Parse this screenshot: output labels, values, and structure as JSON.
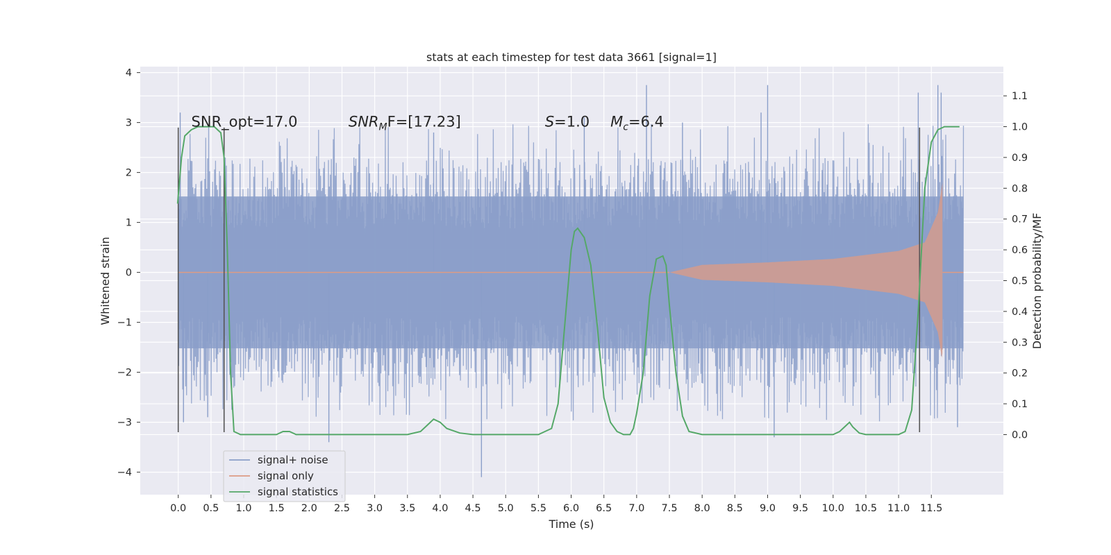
{
  "chart_data": {
    "type": "line",
    "title": "stats at each timestep for test data 3661 [signal=1]",
    "xlabel": "Time (s)",
    "ylabel": "Whitened strain",
    "y2label": "Detection probability/MF",
    "xlim": [
      -0.58,
      12.6
    ],
    "ylim": [
      -4.45,
      4.12
    ],
    "y2lim": [
      -0.195,
      1.195
    ],
    "xticks": [
      "0.0",
      "0.5",
      "1.0",
      "1.5",
      "2.0",
      "2.5",
      "3.0",
      "3.5",
      "4.0",
      "4.5",
      "5.0",
      "5.5",
      "6.0",
      "6.5",
      "7.0",
      "7.5",
      "8.0",
      "8.5",
      "9.0",
      "9.5",
      "10.0",
      "10.5",
      "11.0",
      "11.5"
    ],
    "yticks": [
      "4",
      "3",
      "2",
      "1",
      "0",
      "−1",
      "−2",
      "−3",
      "−4"
    ],
    "y2ticks": [
      "1.1",
      "1.0",
      "0.9",
      "0.8",
      "0.7",
      "0.6",
      "0.5",
      "0.4",
      "0.3",
      "0.2",
      "0.1",
      "0.0"
    ],
    "grid": true,
    "legend_position": "lower-left",
    "annotations": [
      {
        "text": "SNR_opt=17.0",
        "x": 0.2,
        "y": 3.0
      },
      {
        "main": "SNR",
        "sub": "M",
        "rest": "F=[17.23]",
        "x": 2.6,
        "y": 3.0
      },
      {
        "main": "S",
        "sub": "",
        "rest": "=1.0",
        "x": 5.6,
        "y": 3.0
      },
      {
        "main": "M",
        "sub": "c",
        "rest": "=6.4",
        "x": 6.6,
        "y": 3.0
      }
    ],
    "vlines": [
      0.0,
      0.7,
      11.32
    ],
    "series": [
      {
        "name": "signal+ noise",
        "color": "#8a9ec9",
        "kind": "noise",
        "x_range": [
          0.0,
          11.99
        ],
        "band_abs": 1.6,
        "spike_max": 3.8,
        "spikes": [
          {
            "x": 0.03,
            "y": 3.2
          },
          {
            "x": 0.08,
            "y": -3.0
          },
          {
            "x": 0.45,
            "y": -2.9
          },
          {
            "x": 2.3,
            "y": -3.4
          },
          {
            "x": 3.9,
            "y": 2.8
          },
          {
            "x": 4.63,
            "y": -4.1
          },
          {
            "x": 6.2,
            "y": 3.1
          },
          {
            "x": 7.15,
            "y": 3.75
          },
          {
            "x": 7.7,
            "y": 3.0
          },
          {
            "x": 8.9,
            "y": 3.2
          },
          {
            "x": 9.0,
            "y": 3.75
          },
          {
            "x": 9.1,
            "y": -3.3
          },
          {
            "x": 11.3,
            "y": 3.6
          },
          {
            "x": 11.6,
            "y": 3.75
          },
          {
            "x": 11.65,
            "y": 3.6
          },
          {
            "x": 11.9,
            "y": -3.1
          }
        ]
      },
      {
        "name": "signal only",
        "color": "#dd9b84",
        "kind": "chirp",
        "x_range": [
          0.0,
          11.99
        ],
        "onset": 7.5,
        "merger": 11.67,
        "amplitudes": [
          [
            7.5,
            0.0
          ],
          [
            8.0,
            0.15
          ],
          [
            9.0,
            0.2
          ],
          [
            10.0,
            0.27
          ],
          [
            11.0,
            0.43
          ],
          [
            11.4,
            0.6
          ],
          [
            11.6,
            1.2
          ],
          [
            11.67,
            1.8
          ]
        ]
      },
      {
        "name": "signal statistics",
        "color": "#55a868",
        "kind": "stat",
        "axis": "right",
        "points": [
          [
            -0.01,
            0.75
          ],
          [
            0.05,
            0.9
          ],
          [
            0.1,
            0.97
          ],
          [
            0.2,
            0.99
          ],
          [
            0.3,
            1.0
          ],
          [
            0.45,
            1.0
          ],
          [
            0.55,
            1.0
          ],
          [
            0.65,
            0.98
          ],
          [
            0.7,
            0.9
          ],
          [
            0.75,
            0.6
          ],
          [
            0.8,
            0.2
          ],
          [
            0.85,
            0.01
          ],
          [
            0.95,
            0.0
          ],
          [
            1.2,
            0.0
          ],
          [
            1.5,
            0.0
          ],
          [
            1.6,
            0.01
          ],
          [
            1.7,
            0.01
          ],
          [
            1.8,
            0.0
          ],
          [
            2.5,
            0.0
          ],
          [
            3.5,
            0.0
          ],
          [
            3.7,
            0.01
          ],
          [
            3.8,
            0.03
          ],
          [
            3.9,
            0.05
          ],
          [
            4.0,
            0.04
          ],
          [
            4.1,
            0.02
          ],
          [
            4.3,
            0.005
          ],
          [
            4.5,
            0.0
          ],
          [
            5.0,
            0.0
          ],
          [
            5.5,
            0.0
          ],
          [
            5.7,
            0.02
          ],
          [
            5.8,
            0.1
          ],
          [
            5.9,
            0.35
          ],
          [
            6.0,
            0.6
          ],
          [
            6.05,
            0.66
          ],
          [
            6.1,
            0.67
          ],
          [
            6.2,
            0.64
          ],
          [
            6.3,
            0.55
          ],
          [
            6.4,
            0.35
          ],
          [
            6.5,
            0.12
          ],
          [
            6.6,
            0.04
          ],
          [
            6.7,
            0.01
          ],
          [
            6.8,
            0.0
          ],
          [
            6.9,
            0.0
          ],
          [
            6.95,
            0.02
          ],
          [
            7.0,
            0.07
          ],
          [
            7.1,
            0.2
          ],
          [
            7.2,
            0.45
          ],
          [
            7.3,
            0.57
          ],
          [
            7.4,
            0.58
          ],
          [
            7.45,
            0.55
          ],
          [
            7.5,
            0.42
          ],
          [
            7.6,
            0.2
          ],
          [
            7.7,
            0.06
          ],
          [
            7.8,
            0.01
          ],
          [
            8.0,
            0.0
          ],
          [
            8.3,
            0.0
          ],
          [
            8.5,
            0.0
          ],
          [
            9.5,
            0.0
          ],
          [
            10.0,
            0.0
          ],
          [
            10.1,
            0.01
          ],
          [
            10.2,
            0.03
          ],
          [
            10.25,
            0.04
          ],
          [
            10.3,
            0.025
          ],
          [
            10.4,
            0.005
          ],
          [
            10.5,
            0.0
          ],
          [
            11.0,
            0.0
          ],
          [
            11.1,
            0.01
          ],
          [
            11.2,
            0.08
          ],
          [
            11.3,
            0.4
          ],
          [
            11.4,
            0.8
          ],
          [
            11.5,
            0.95
          ],
          [
            11.6,
            0.99
          ],
          [
            11.7,
            1.0
          ],
          [
            11.93,
            1.0
          ]
        ]
      }
    ]
  }
}
